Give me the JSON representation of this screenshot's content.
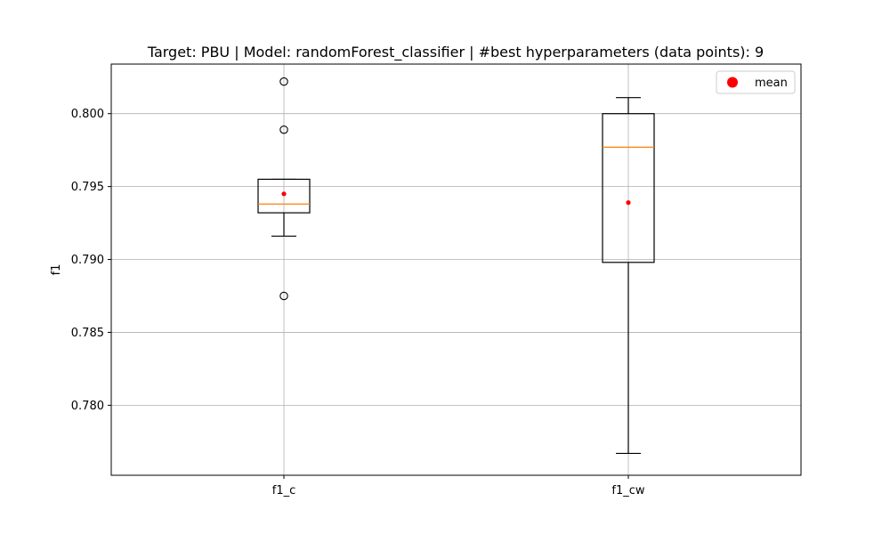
{
  "chart_data": {
    "type": "box",
    "title": "Target: PBU | Model: randomForest_classifier | #best hyperparameters (data points): 9",
    "xlabel": "",
    "ylabel": "f1",
    "ylim": [
      0.7752,
      0.8034
    ],
    "yticks": [
      "0.780",
      "0.785",
      "0.790",
      "0.795",
      "0.800"
    ],
    "ytick_values": [
      0.78,
      0.785,
      0.79,
      0.795,
      0.8
    ],
    "grid": true,
    "legend": {
      "placement": "top-right",
      "entries": [
        {
          "label": "mean",
          "color": "#ff0000"
        }
      ]
    },
    "categories": [
      "f1_c",
      "f1_cw"
    ],
    "boxes": [
      {
        "name": "f1_c",
        "whisker_low": 0.7916,
        "q1": 0.7932,
        "median": 0.7938,
        "q3": 0.7955,
        "whisker_high": 0.7955,
        "mean": 0.7945,
        "outliers": [
          0.8022,
          0.7989,
          0.7875
        ]
      },
      {
        "name": "f1_cw",
        "whisker_low": 0.7767,
        "q1": 0.7898,
        "median": 0.7977,
        "q3": 0.8,
        "whisker_high": 0.8011,
        "mean": 0.7939,
        "outliers": []
      }
    ],
    "colors": {
      "box": "#000000",
      "median": "#ff7f0e",
      "mean": "#ff0000",
      "grid": "#b0b0b0"
    }
  }
}
